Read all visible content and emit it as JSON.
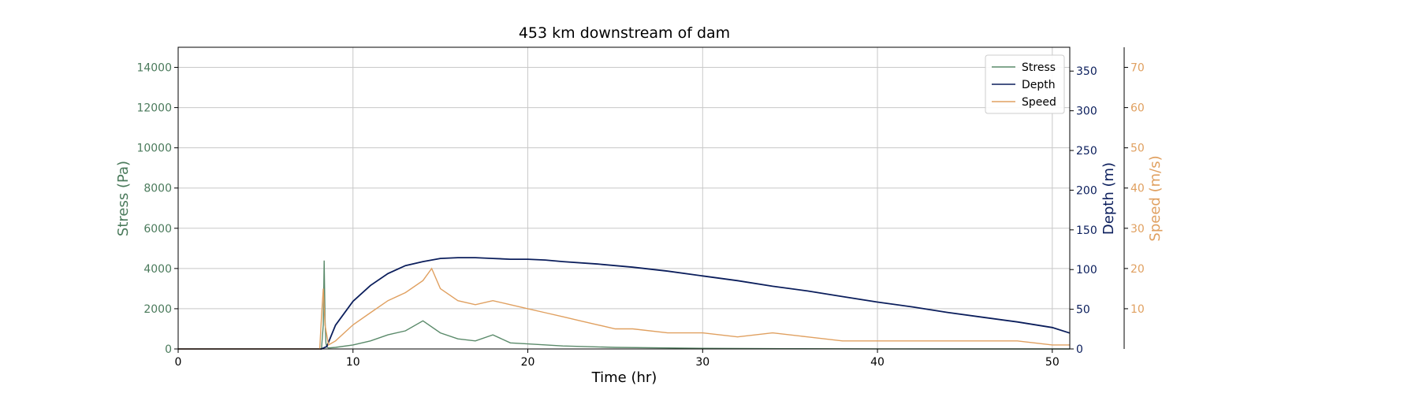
{
  "chart_data": {
    "type": "line",
    "title": "453 km downstream of dam",
    "xlabel": "Time (hr)",
    "xlim": [
      0,
      51
    ],
    "xticks": [
      0,
      10,
      20,
      30,
      40,
      50
    ],
    "grid": true,
    "legend_position": "top-right",
    "axes": {
      "stress": {
        "label": "Stress (Pa)",
        "color": "#4a7a5b",
        "ylim": [
          0,
          15000
        ],
        "ticks": [
          0,
          2000,
          4000,
          6000,
          8000,
          10000,
          12000,
          14000
        ],
        "side": "left"
      },
      "depth": {
        "label": "Depth (m)",
        "color": "#0b1e5c",
        "ylim": [
          0,
          380
        ],
        "ticks": [
          0,
          50,
          100,
          150,
          200,
          250,
          300,
          350
        ],
        "side": "right"
      },
      "speed": {
        "label": "Speed (m/s)",
        "color": "#e0a060",
        "ylim": [
          0,
          75
        ],
        "ticks": [
          10,
          20,
          30,
          40,
          50,
          60,
          70
        ],
        "side": "right-offset"
      }
    },
    "series": [
      {
        "name": "Stress",
        "axis": "stress",
        "color": "#5a8a6a",
        "x": [
          0,
          8.2,
          8.3,
          8.35,
          8.4,
          8.45,
          8.5,
          8.6,
          9,
          10,
          11,
          12,
          13,
          14,
          15,
          16,
          17,
          18,
          19,
          20,
          22,
          25,
          28,
          30,
          35,
          40,
          45,
          51
        ],
        "y": [
          0,
          0,
          1200,
          4400,
          1500,
          300,
          100,
          50,
          80,
          200,
          400,
          700,
          900,
          1400,
          800,
          500,
          400,
          700,
          300,
          250,
          150,
          80,
          50,
          30,
          10,
          5,
          0,
          0
        ]
      },
      {
        "name": "Depth",
        "axis": "depth",
        "color": "#0b1e5c",
        "x": [
          0,
          8.2,
          8.5,
          9,
          10,
          11,
          12,
          13,
          14,
          15,
          16,
          17,
          18,
          19,
          20,
          21,
          22,
          24,
          26,
          28,
          30,
          32,
          34,
          36,
          38,
          40,
          42,
          44,
          46,
          48,
          50,
          51
        ],
        "y": [
          0,
          0,
          3,
          30,
          60,
          80,
          95,
          105,
          110,
          114,
          115,
          115,
          114,
          113,
          113,
          112,
          110,
          107,
          103,
          98,
          92,
          86,
          79,
          73,
          66,
          59,
          53,
          46,
          40,
          34,
          27,
          20
        ]
      },
      {
        "name": "Speed",
        "axis": "speed",
        "color": "#e0a060",
        "x": [
          0,
          8.1,
          8.2,
          8.3,
          8.4,
          8.6,
          9,
          10,
          11,
          12,
          13,
          14,
          14.5,
          15,
          16,
          17,
          18,
          19,
          20,
          21,
          22,
          23,
          24,
          25,
          26,
          28,
          30,
          32,
          34,
          36,
          38,
          40,
          42,
          44,
          46,
          48,
          50,
          51
        ],
        "y": [
          0,
          0,
          8,
          15,
          6,
          1,
          2,
          6,
          9,
          12,
          14,
          17,
          20,
          15,
          12,
          11,
          12,
          11,
          10,
          9,
          8,
          7,
          6,
          5,
          5,
          4,
          4,
          3,
          4,
          3,
          2,
          2,
          2,
          2,
          2,
          2,
          1,
          1
        ]
      }
    ]
  }
}
